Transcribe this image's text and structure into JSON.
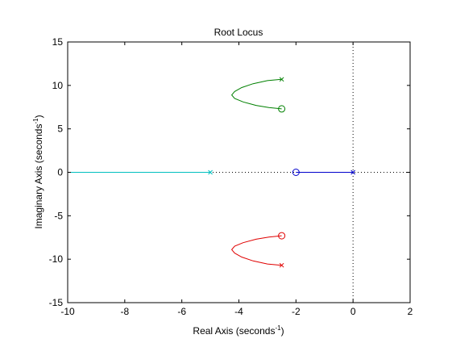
{
  "chart_data": {
    "type": "root_locus",
    "title": "Root Locus",
    "xlabel": "Real Axis (seconds",
    "xlabel_sup": "-1",
    "xlabel_close": ")",
    "ylabel": "Imaginary Axis (seconds",
    "ylabel_sup": "-1",
    "ylabel_close": ")",
    "xlim": [
      -10,
      2
    ],
    "ylim": [
      -15,
      15
    ],
    "xticks": [
      -10,
      -8,
      -6,
      -4,
      -2,
      0,
      2
    ],
    "yticks": [
      -15,
      -10,
      -5,
      0,
      5,
      10,
      15
    ],
    "xtick_labels": [
      "-10",
      "-8",
      "-6",
      "-4",
      "-2",
      "0",
      "2"
    ],
    "ytick_labels": [
      "-15",
      "-10",
      "-5",
      "0",
      "5",
      "10",
      "15"
    ],
    "grid": false,
    "reference_lines": {
      "real_axis_dotted": true,
      "imaginary_axis_dotted": true
    },
    "poles": [
      {
        "x": 0,
        "y": 0
      },
      {
        "x": -5,
        "y": 0
      },
      {
        "x": -2.5,
        "y": 10.7
      },
      {
        "x": -2.5,
        "y": -10.7
      }
    ],
    "zeros": [
      {
        "x": -2,
        "y": 0
      },
      {
        "x": -2.5,
        "y": 7.3
      },
      {
        "x": -2.5,
        "y": -7.3
      }
    ],
    "branches": [
      {
        "color": "#0000cc",
        "points": [
          [
            0,
            0
          ],
          [
            -2,
            0
          ]
        ]
      },
      {
        "color": "#00bfbf",
        "points": [
          [
            -5,
            0
          ],
          [
            -10,
            0
          ]
        ]
      },
      {
        "color": "#008000",
        "points": [
          [
            -2.5,
            10.7
          ],
          [
            -3.0,
            10.55
          ],
          [
            -3.5,
            10.2
          ],
          [
            -3.9,
            9.75
          ],
          [
            -4.15,
            9.3
          ],
          [
            -4.25,
            8.9
          ],
          [
            -4.15,
            8.5
          ],
          [
            -3.85,
            8.1
          ],
          [
            -3.4,
            7.7
          ],
          [
            -2.95,
            7.45
          ],
          [
            -2.5,
            7.3
          ]
        ]
      },
      {
        "color": "#e00000",
        "points": [
          [
            -2.5,
            -10.7
          ],
          [
            -3.0,
            -10.55
          ],
          [
            -3.5,
            -10.2
          ],
          [
            -3.9,
            -9.75
          ],
          [
            -4.15,
            -9.3
          ],
          [
            -4.25,
            -8.9
          ],
          [
            -4.15,
            -8.5
          ],
          [
            -3.85,
            -8.1
          ],
          [
            -3.4,
            -7.7
          ],
          [
            -2.95,
            -7.45
          ],
          [
            -2.5,
            -7.3
          ]
        ]
      }
    ]
  }
}
